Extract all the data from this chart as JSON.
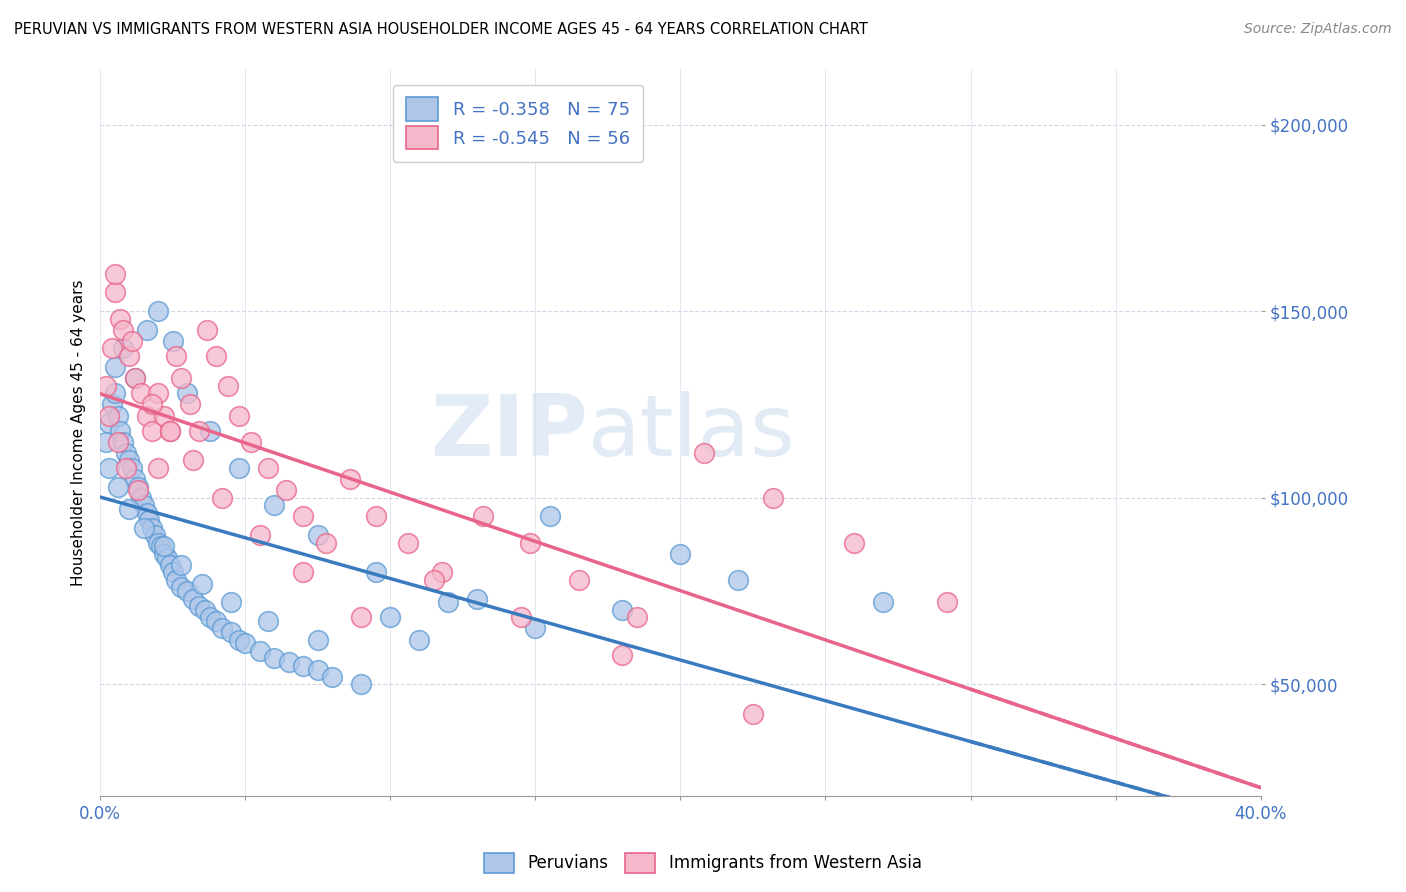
{
  "title": "PERUVIAN VS IMMIGRANTS FROM WESTERN ASIA HOUSEHOLDER INCOME AGES 45 - 64 YEARS CORRELATION CHART",
  "source": "Source: ZipAtlas.com",
  "ylabel": "Householder Income Ages 45 - 64 years",
  "xlim": [
    0.0,
    0.4
  ],
  "ylim": [
    20000,
    215000
  ],
  "yticks": [
    50000,
    100000,
    150000,
    200000
  ],
  "ytick_labels": [
    "$50,000",
    "$100,000",
    "$150,000",
    "$200,000"
  ],
  "legend1_R": "-0.358",
  "legend1_N": "75",
  "legend2_R": "-0.545",
  "legend2_N": "56",
  "blue_color": "#aec6e8",
  "pink_color": "#f5b8cb",
  "blue_edge_color": "#5b9bd5",
  "pink_edge_color": "#e8648a",
  "blue_line_color": "#3a7abf",
  "pink_line_color": "#e8648a",
  "axis_label_color": "#4472c4",
  "watermark_color": "#d0dff0",
  "background_color": "#ffffff",
  "grid_color": "#c8d4e8",
  "blue_scatter_x": [
    0.002,
    0.003,
    0.004,
    0.005,
    0.006,
    0.007,
    0.008,
    0.009,
    0.01,
    0.011,
    0.012,
    0.013,
    0.014,
    0.015,
    0.016,
    0.017,
    0.018,
    0.019,
    0.02,
    0.021,
    0.022,
    0.023,
    0.024,
    0.025,
    0.026,
    0.028,
    0.03,
    0.032,
    0.034,
    0.036,
    0.038,
    0.04,
    0.042,
    0.045,
    0.048,
    0.05,
    0.055,
    0.06,
    0.065,
    0.07,
    0.075,
    0.08,
    0.09,
    0.1,
    0.11,
    0.13,
    0.15,
    0.18,
    0.22,
    0.27,
    0.005,
    0.008,
    0.012,
    0.016,
    0.02,
    0.025,
    0.03,
    0.038,
    0.048,
    0.06,
    0.075,
    0.095,
    0.12,
    0.155,
    0.2,
    0.003,
    0.006,
    0.01,
    0.015,
    0.022,
    0.028,
    0.035,
    0.045,
    0.058,
    0.075
  ],
  "blue_scatter_y": [
    115000,
    120000,
    125000,
    128000,
    122000,
    118000,
    115000,
    112000,
    110000,
    108000,
    105000,
    103000,
    100000,
    98000,
    96000,
    94000,
    92000,
    90000,
    88000,
    87000,
    85000,
    84000,
    82000,
    80000,
    78000,
    76000,
    75000,
    73000,
    71000,
    70000,
    68000,
    67000,
    65000,
    64000,
    62000,
    61000,
    59000,
    57000,
    56000,
    55000,
    54000,
    52000,
    50000,
    68000,
    62000,
    73000,
    65000,
    70000,
    78000,
    72000,
    135000,
    140000,
    132000,
    145000,
    150000,
    142000,
    128000,
    118000,
    108000,
    98000,
    90000,
    80000,
    72000,
    95000,
    85000,
    108000,
    103000,
    97000,
    92000,
    87000,
    82000,
    77000,
    72000,
    67000,
    62000
  ],
  "pink_scatter_x": [
    0.002,
    0.004,
    0.005,
    0.007,
    0.008,
    0.01,
    0.012,
    0.014,
    0.016,
    0.018,
    0.02,
    0.022,
    0.024,
    0.026,
    0.028,
    0.031,
    0.034,
    0.037,
    0.04,
    0.044,
    0.048,
    0.052,
    0.058,
    0.064,
    0.07,
    0.078,
    0.086,
    0.095,
    0.106,
    0.118,
    0.132,
    0.148,
    0.165,
    0.185,
    0.208,
    0.232,
    0.26,
    0.292,
    0.003,
    0.006,
    0.009,
    0.013,
    0.018,
    0.024,
    0.032,
    0.042,
    0.055,
    0.07,
    0.09,
    0.115,
    0.145,
    0.18,
    0.225,
    0.005,
    0.011,
    0.02
  ],
  "pink_scatter_y": [
    130000,
    140000,
    155000,
    148000,
    145000,
    138000,
    132000,
    128000,
    122000,
    118000,
    128000,
    122000,
    118000,
    138000,
    132000,
    125000,
    118000,
    145000,
    138000,
    130000,
    122000,
    115000,
    108000,
    102000,
    95000,
    88000,
    105000,
    95000,
    88000,
    80000,
    95000,
    88000,
    78000,
    68000,
    112000,
    100000,
    88000,
    72000,
    122000,
    115000,
    108000,
    102000,
    125000,
    118000,
    110000,
    100000,
    90000,
    80000,
    68000,
    78000,
    68000,
    58000,
    42000,
    160000,
    142000,
    108000
  ]
}
